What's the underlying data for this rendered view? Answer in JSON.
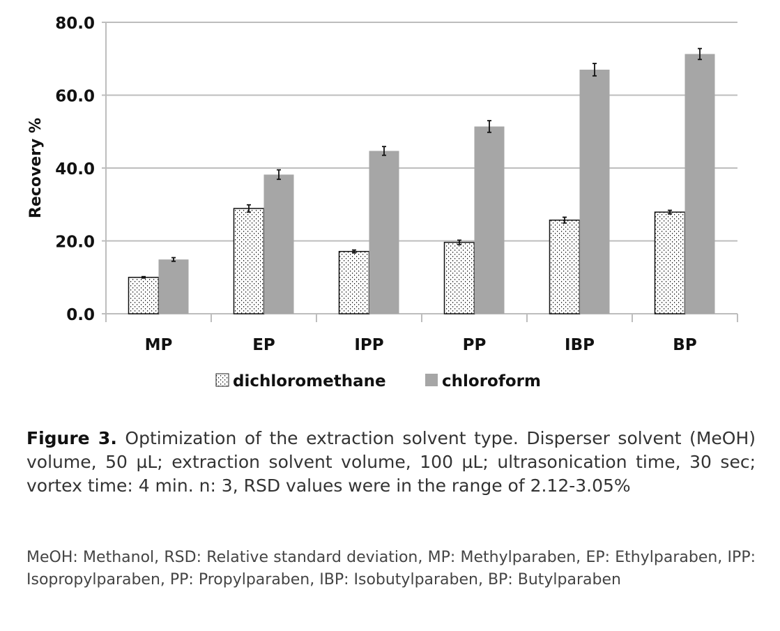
{
  "chart_data": {
    "type": "bar",
    "title": "",
    "xlabel": "",
    "ylabel": "Recovery %",
    "ylim": [
      0,
      80
    ],
    "yticks": [
      "0.0",
      "20.0",
      "40.0",
      "60.0",
      "80.0"
    ],
    "ytick_values": [
      0,
      20,
      40,
      60,
      80
    ],
    "grid": true,
    "legend_position": "bottom",
    "categories": [
      "MP",
      "EP",
      "IPP",
      "PP",
      "IBP",
      "BP"
    ],
    "series": [
      {
        "name": "dichloromethane",
        "pattern": "dotted",
        "color": "#ffffff",
        "values": [
          10.0,
          28.9,
          17.1,
          19.6,
          25.7,
          27.9
        ],
        "errors": [
          0.2,
          1.0,
          0.4,
          0.6,
          0.8,
          0.5
        ]
      },
      {
        "name": "chloroform",
        "pattern": "solid",
        "color": "#a6a6a6",
        "values": [
          14.9,
          38.2,
          44.7,
          51.4,
          67.0,
          71.3
        ],
        "errors": [
          0.5,
          1.3,
          1.2,
          1.6,
          1.7,
          1.5
        ]
      }
    ]
  },
  "caption": {
    "label": "Figure 3.",
    "text": " Optimization of the extraction solvent type. Disperser solvent (MeOH) volume, 50 µL; extraction solvent volume, 100 µL; ultrasonication time, 30 sec; vortex time: 4 min. n: 3, RSD values were in the range of 2.12-3.05%",
    "abbreviations": "MeOH: Methanol, RSD: Relative standard deviation, MP: Methylparaben, EP: Ethylparaben, IPP: Isopropylparaben, PP: Propylparaben, IBP: Isobutylparaben, BP: Butylparaben"
  }
}
